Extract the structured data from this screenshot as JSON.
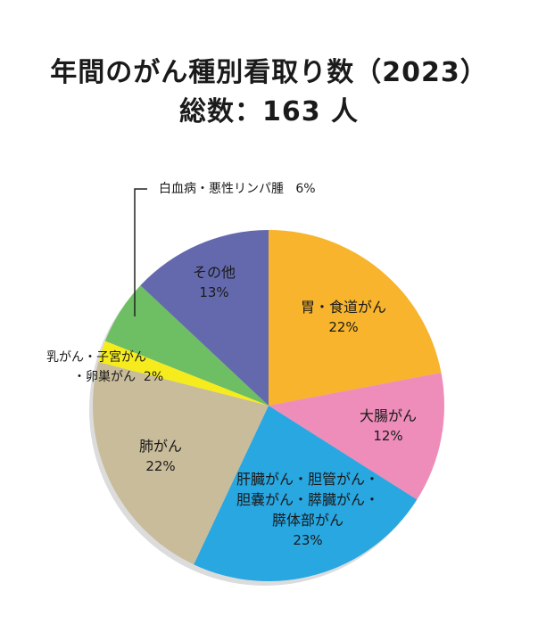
{
  "title": "年間のがん種別看取り数（2023）",
  "subtitle": "総数：163 人",
  "chart_data": {
    "type": "pie",
    "title": "年間のがん種別看取り数（2023）",
    "subtitle": "総数：163 人",
    "start": "top",
    "direction": "clockwise",
    "slices": [
      {
        "label": "胃・食道がん",
        "label_lines": [
          "胃・食道がん"
        ],
        "value": 22,
        "pct": "22%",
        "color": "#F7B42C"
      },
      {
        "label": "大腸がん",
        "label_lines": [
          "大腸がん"
        ],
        "value": 12,
        "pct": "12%",
        "color": "#EE8DB9"
      },
      {
        "label": "肝臓がん・胆管がん・胆嚢がん・膵臓がん・膵体部がん",
        "label_lines": [
          "肝臓がん・胆管がん・",
          "胆嚢がん・膵臓がん・",
          "膵体部がん"
        ],
        "value": 23,
        "pct": "23%",
        "color": "#29A7E1"
      },
      {
        "label": "肺がん",
        "label_lines": [
          "肺がん"
        ],
        "value": 22,
        "pct": "22%",
        "color": "#C9BC9B"
      },
      {
        "label": "乳がん・子宮がん・卵巣がん",
        "label_lines": [
          "乳がん・子宮がん",
          "・卵巣がん"
        ],
        "value": 2,
        "pct": "2%",
        "color": "#F6EC1D"
      },
      {
        "label": "白血病・悪性リンパ腫",
        "label_lines": [
          "白血病・悪性リンパ腫"
        ],
        "value": 6,
        "pct": "6%",
        "color": "#6EBE63"
      },
      {
        "label": "その他",
        "label_lines": [
          "その他"
        ],
        "value": 13,
        "pct": "13%",
        "color": "#6469AE"
      }
    ],
    "legend": "none"
  }
}
